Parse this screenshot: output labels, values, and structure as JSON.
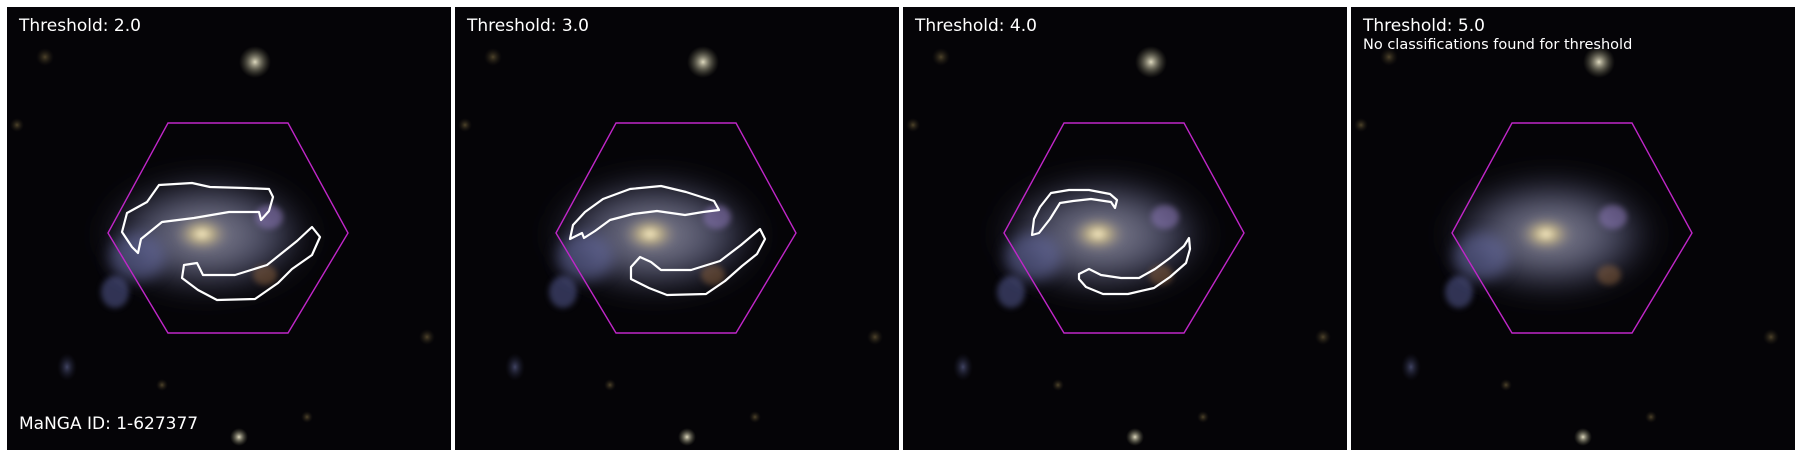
{
  "figure": {
    "manga_id_label": "MaNGA ID: 1-627377"
  },
  "panels": [
    {
      "threshold_label": "Threshold: 2.0",
      "note": ""
    },
    {
      "threshold_label": "Threshold: 3.0",
      "note": ""
    },
    {
      "threshold_label": "Threshold: 4.0",
      "note": ""
    },
    {
      "threshold_label": "Threshold: 5.0",
      "note": "No classifications found for threshold"
    }
  ],
  "colors": {
    "background": "#050407",
    "hexagon_outline": "#c026c8",
    "contour": "#ffffff",
    "label_text": "#ffffff",
    "panel_gap": "#ffffff"
  },
  "icons": {
    "galaxy": "spiral-galaxy-image",
    "ifu_footprint": "hexagon-outline",
    "arm_contour": "white-contour-outline"
  }
}
